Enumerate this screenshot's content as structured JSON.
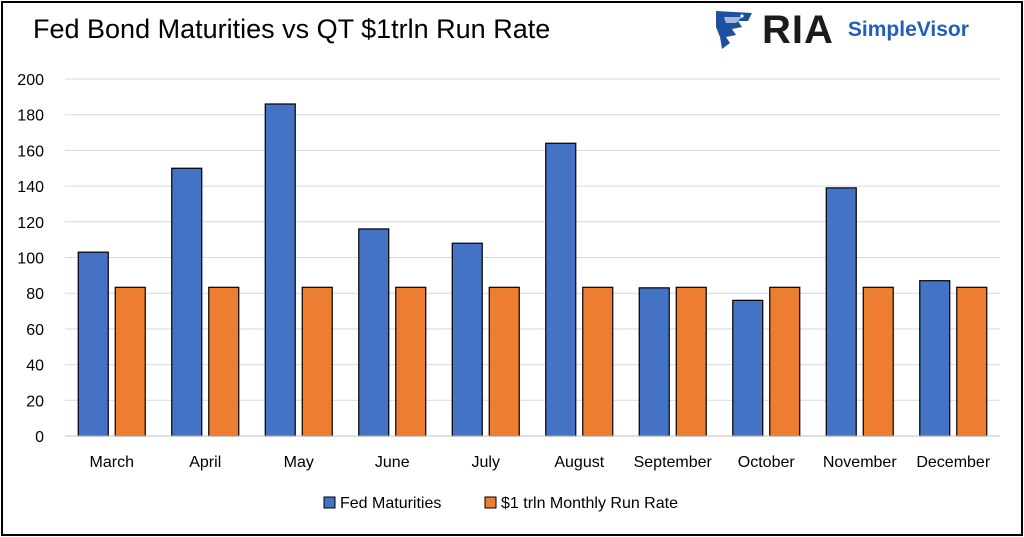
{
  "chart_data": {
    "type": "bar",
    "title": "Fed Bond Maturities vs QT $1trln Run Rate",
    "xlabel": "",
    "ylabel": "",
    "ylim": [
      0,
      200
    ],
    "yticks": [
      0,
      20,
      40,
      60,
      80,
      100,
      120,
      140,
      160,
      180,
      200
    ],
    "grid": true,
    "legend_position": "bottom",
    "categories": [
      "March",
      "April",
      "May",
      "June",
      "July",
      "August",
      "September",
      "October",
      "November",
      "December"
    ],
    "series": [
      {
        "name": "Fed Maturities",
        "color": "#4472c4",
        "values": [
          103,
          150,
          186,
          116,
          108,
          164,
          83,
          76,
          139,
          87
        ]
      },
      {
        "name": "$1 trln Monthly Run Rate",
        "color": "#ed7d31",
        "values": [
          83.3,
          83.3,
          83.3,
          83.3,
          83.3,
          83.3,
          83.3,
          83.3,
          83.3,
          83.3
        ]
      }
    ]
  },
  "logo": {
    "wordmark": "RIA",
    "product": "SimpleVisor"
  }
}
